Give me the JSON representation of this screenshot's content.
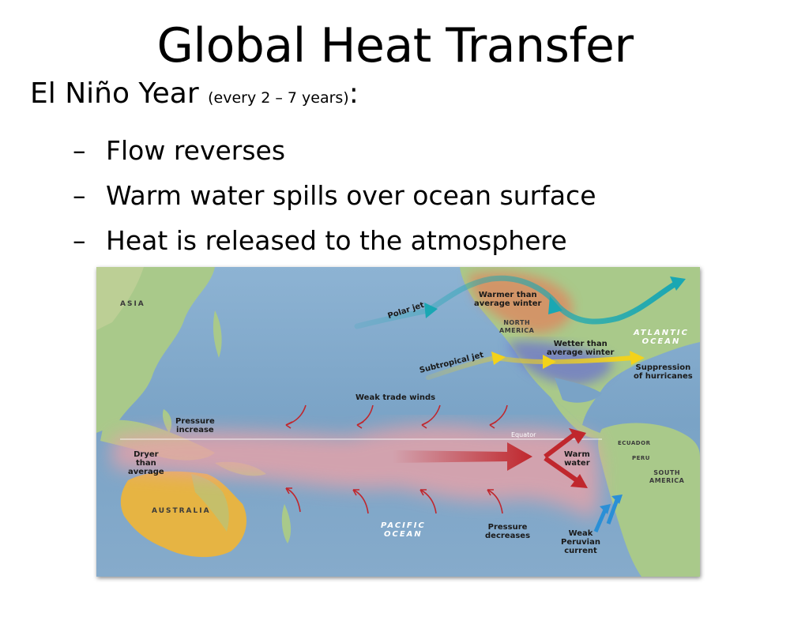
{
  "slide": {
    "title": "Global Heat Transfer",
    "heading": "El Niño Year",
    "heading_paren": "(every 2 – 7 years)",
    "heading_colon": ":",
    "bullets": [
      "Flow reverses",
      "Warm water spills over ocean surface",
      "Heat is released to the atmosphere"
    ],
    "bullet_marker": "–"
  },
  "map": {
    "labels": {
      "polar_jet": "Polar jet",
      "warmer_than": "Warmer than",
      "average_winter": "average winter",
      "north": "NORTH",
      "america": "AMERICA",
      "subtropical_jet": "Subtropical jet",
      "wetter_than": "Wetter than",
      "average_winter_2": "average winter",
      "atlantic": "ATLANTIC",
      "ocean_a": "OCEAN",
      "suppression_of": "Suppression",
      "of_hurricanes": "of hurricanes",
      "weak_trade_winds": "Weak trade winds",
      "pressure": "Pressure",
      "increase": "increase",
      "equator": "Equator",
      "dryer": "Dryer",
      "than": "than",
      "average": "average",
      "warm": "Warm",
      "water": "water",
      "ecuador": "ECUADOR",
      "peru": "PERU",
      "south": "SOUTH",
      "america_s": "AMERICA",
      "australia": "AUSTRALIA",
      "pacific": "PACIFIC",
      "ocean_p": "OCEAN",
      "pressure_2": "Pressure",
      "decreases": "decreases",
      "weak": "Weak",
      "peruvian": "Peruvian",
      "current": "current",
      "asia": "ASIA"
    },
    "colors": {
      "ocean": "#7fa7c9",
      "land": "#a9c98a",
      "warm_anomaly": "#e8a2a8",
      "warm_arrow": "#c0272d",
      "polar_jet": "#1aa7b3",
      "subtropical_jet": "#f3d21a",
      "peruvian_current": "#2a8fd6",
      "warmer_region": "#e4805a",
      "wetter_region": "#6a72cf"
    }
  }
}
